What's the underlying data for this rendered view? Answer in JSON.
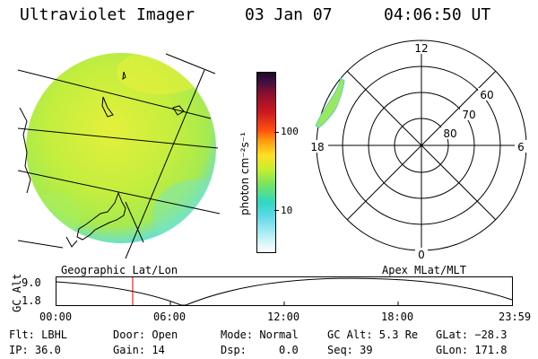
{
  "header": {
    "instrument": "Ultraviolet Imager",
    "date": "03 Jan 07",
    "time": "04:06:50 UT"
  },
  "colorbar": {
    "unit_label": "photon cm⁻²s⁻¹",
    "ticks": [
      "100",
      "10"
    ]
  },
  "polar": {
    "mlt_labels": [
      "12",
      "18",
      "6",
      "0"
    ],
    "mlat_labels": [
      "60",
      "70",
      "80"
    ]
  },
  "map_labels": {
    "left": "Geographic Lat/Lon",
    "right": "Apex MLat/MLT"
  },
  "altitude_plot": {
    "ylabel": "GC Alt",
    "y_ticks": [
      "9.0",
      "1.8"
    ],
    "x_ticks": [
      "00:00",
      "06:00",
      "12:00",
      "18:00",
      "23:59"
    ],
    "current_time_marker": "04:06:50"
  },
  "status": {
    "flt": "Flt: LBHL",
    "ip": "IP: 36.0",
    "door": "Door: Open",
    "gain": "Gain: 14",
    "mode": "Mode: Normal",
    "dsp": "Dsp:     0.0",
    "gc_alt": "GC Alt: 5.3 Re",
    "seq": "Seq: 39",
    "glat": "GLat: −28.3",
    "glon": "GLon: 171.8"
  },
  "colors": {
    "background": "#ffffff",
    "map_green": "#c0ee3c",
    "map_yellow": "#e8f03a",
    "map_cyan": "#5fe0d6",
    "marker_red": "#cc0000"
  }
}
